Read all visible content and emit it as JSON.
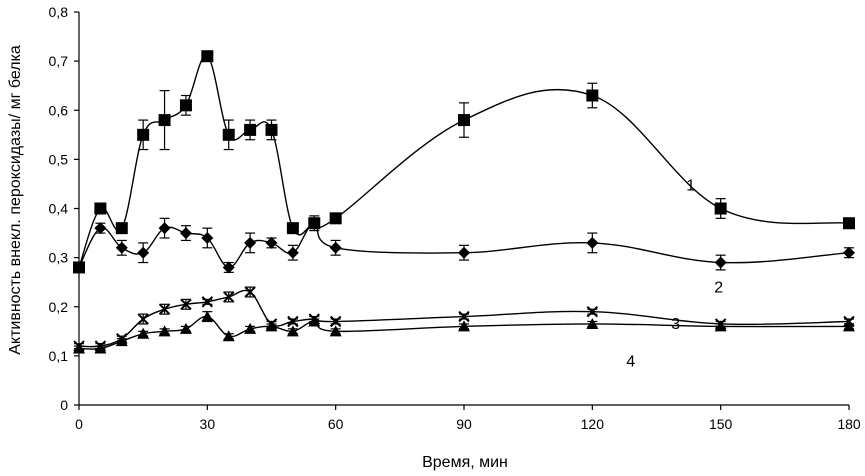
{
  "chart_data": {
    "type": "line",
    "title": "",
    "xlabel": "Время, мин",
    "ylabel": "Активность внекл. пероксидазы/ мг белка",
    "xlim": [
      0,
      180
    ],
    "ylim": [
      0,
      0.8
    ],
    "x_ticks": [
      0,
      30,
      60,
      90,
      120,
      150,
      180
    ],
    "x_tick_labels": [
      "0",
      "30",
      "60",
      "90",
      "120",
      "150",
      "180"
    ],
    "y_ticks": [
      0,
      0.1,
      0.2,
      0.3,
      0.4,
      0.5,
      0.6,
      0.7,
      0.8
    ],
    "y_tick_labels": [
      "0",
      "0,1",
      "0,2",
      "0,3",
      "0,4",
      "0,5",
      "0,6",
      "0,7",
      "0,8"
    ],
    "grid": false,
    "legend": "none",
    "x": [
      0,
      5,
      10,
      15,
      20,
      25,
      30,
      35,
      40,
      45,
      50,
      55,
      60,
      90,
      120,
      150,
      180
    ],
    "series": [
      {
        "name": "1",
        "marker": "square",
        "values": [
          0.28,
          0.4,
          0.36,
          0.55,
          0.58,
          0.61,
          0.71,
          0.55,
          0.56,
          0.56,
          0.36,
          0.37,
          0.38,
          0.58,
          0.63,
          0.4,
          0.37
        ],
        "errors": [
          0.01,
          0.01,
          0.01,
          0.03,
          0.06,
          0.02,
          0.01,
          0.03,
          0.02,
          0.02,
          0.01,
          0.01,
          0.01,
          0.035,
          0.025,
          0.02,
          0.01
        ]
      },
      {
        "name": "2",
        "marker": "diamond",
        "values": [
          0.28,
          0.36,
          0.32,
          0.31,
          0.36,
          0.35,
          0.34,
          0.28,
          0.33,
          0.33,
          0.31,
          0.37,
          0.32,
          0.31,
          0.33,
          0.29,
          0.31
        ],
        "errors": [
          0.01,
          0.01,
          0.015,
          0.02,
          0.02,
          0.015,
          0.02,
          0.01,
          0.02,
          0.01,
          0.015,
          0.015,
          0.015,
          0.015,
          0.02,
          0.015,
          0.01
        ]
      },
      {
        "name": "3",
        "marker": "cross",
        "values": [
          0.12,
          0.12,
          0.135,
          0.175,
          0.195,
          0.205,
          0.21,
          0.22,
          0.23,
          0.165,
          0.17,
          0.175,
          0.17,
          0.18,
          0.19,
          0.165,
          0.17
        ],
        "errors": [
          0.005,
          0.005,
          0.005,
          0.01,
          0.01,
          0.01,
          0.005,
          0.01,
          0.01,
          0.005,
          0.005,
          0.005,
          0.005,
          0.005,
          0.005,
          0.005,
          0.005
        ]
      },
      {
        "name": "4",
        "marker": "triangle",
        "values": [
          0.115,
          0.115,
          0.13,
          0.145,
          0.15,
          0.155,
          0.18,
          0.14,
          0.155,
          0.16,
          0.15,
          0.17,
          0.15,
          0.16,
          0.165,
          0.16,
          0.16
        ],
        "errors": [
          0.005,
          0.005,
          0.005,
          0.005,
          0.005,
          0.005,
          0.01,
          0.005,
          0.005,
          0.005,
          0.005,
          0.005,
          0.005,
          0.005,
          0.005,
          0.005,
          0.005
        ]
      }
    ]
  }
}
